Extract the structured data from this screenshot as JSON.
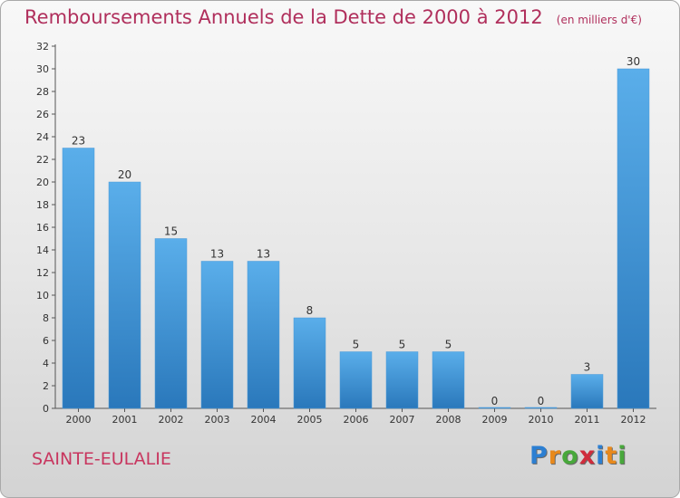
{
  "title": "Remboursements Annuels de la Dette de 2000 à 2012",
  "subtitle": "(en milliers d'€)",
  "commune": "SAINTE-EULALIE",
  "logo": {
    "letters": [
      "P",
      "r",
      "o",
      "x",
      "i",
      "t",
      "i"
    ],
    "colors": [
      "#2c7fd2",
      "#e8891c",
      "#48a83b",
      "#d02c3c",
      "#2c7fd2",
      "#e8891c",
      "#48a83b"
    ]
  },
  "colors": {
    "bar_top": "#5aaeea",
    "bar_bottom": "#2a78bb",
    "title": "#b02f5c"
  },
  "chart_data": {
    "type": "bar",
    "categories": [
      "2000",
      "2001",
      "2002",
      "2003",
      "2004",
      "2005",
      "2006",
      "2007",
      "2008",
      "2009",
      "2010",
      "2011",
      "2012"
    ],
    "values": [
      23,
      20,
      15,
      13,
      13,
      8,
      5,
      5,
      5,
      0,
      0,
      3,
      30
    ],
    "ylim": [
      0,
      32
    ],
    "yticks": [
      0,
      2,
      4,
      6,
      8,
      10,
      12,
      14,
      16,
      18,
      20,
      22,
      24,
      26,
      28,
      30,
      32
    ],
    "grid": false,
    "title": "Remboursements Annuels de la Dette de 2000 à 2012",
    "xlabel": "",
    "ylabel": ""
  }
}
